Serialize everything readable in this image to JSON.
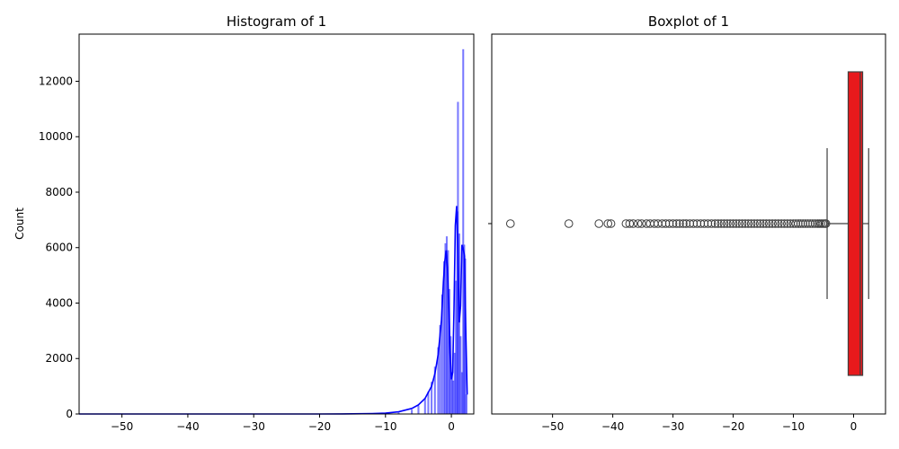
{
  "chart_data": [
    {
      "type": "histogram",
      "title": "Histogram of 1",
      "xlabel": "",
      "ylabel": "Count",
      "xlim": [
        -56.5,
        3.4
      ],
      "ylim": [
        0,
        13700
      ],
      "xticks": [
        -50,
        -40,
        -30,
        -20,
        -10,
        0
      ],
      "xtick_labels": [
        "−50",
        "−40",
        "−30",
        "−20",
        "−10",
        "0"
      ],
      "yticks": [
        0,
        2000,
        4000,
        6000,
        8000,
        10000,
        12000
      ],
      "ytick_labels": [
        "0",
        "2000",
        "4000",
        "6000",
        "8000",
        "10000",
        "12000"
      ],
      "bar_color": "#0000ff",
      "kde_color": "#0000ff",
      "bins": [
        {
          "x": -12,
          "count": 3
        },
        {
          "x": -10,
          "count": 10
        },
        {
          "x": -8,
          "count": 40
        },
        {
          "x": -6,
          "count": 150
        },
        {
          "x": -5,
          "count": 300
        },
        {
          "x": -4,
          "count": 550
        },
        {
          "x": -3.5,
          "count": 800
        },
        {
          "x": -3,
          "count": 1150
        },
        {
          "x": -2.5,
          "count": 1700
        },
        {
          "x": -2,
          "count": 2400
        },
        {
          "x": -1.7,
          "count": 3200
        },
        {
          "x": -1.4,
          "count": 4300
        },
        {
          "x": -1.1,
          "count": 5500
        },
        {
          "x": -0.9,
          "count": 6150
        },
        {
          "x": -0.7,
          "count": 6400
        },
        {
          "x": -0.5,
          "count": 5900
        },
        {
          "x": -0.3,
          "count": 4500
        },
        {
          "x": -0.1,
          "count": 2800
        },
        {
          "x": 0.1,
          "count": 1500
        },
        {
          "x": 0.3,
          "count": 1200
        },
        {
          "x": 0.5,
          "count": 2200
        },
        {
          "x": 0.7,
          "count": 4800
        },
        {
          "x": 0.9,
          "count": 7300
        },
        {
          "x": 1.0,
          "count": 11250
        },
        {
          "x": 1.2,
          "count": 6500
        },
        {
          "x": 1.4,
          "count": 2800
        },
        {
          "x": 1.6,
          "count": 1500
        },
        {
          "x": 1.8,
          "count": 13150
        },
        {
          "x": 1.95,
          "count": 6100
        },
        {
          "x": 2.1,
          "count": 5600
        },
        {
          "x": 2.3,
          "count": 700
        }
      ],
      "kde": {
        "x": [
          -56.5,
          -30,
          -20,
          -15,
          -12,
          -10,
          -8,
          -6,
          -5,
          -4,
          -3,
          -2.5,
          -2,
          -1.5,
          -1.2,
          -1.0,
          -0.8,
          -0.6,
          -0.4,
          -0.2,
          0.0,
          0.2,
          0.4,
          0.6,
          0.8,
          1.0,
          1.2,
          1.4,
          1.6,
          1.8,
          2.0,
          2.2,
          2.4
        ],
        "y": [
          0,
          0,
          0,
          5,
          15,
          30,
          80,
          200,
          330,
          560,
          1000,
          1450,
          2150,
          3400,
          4800,
          5500,
          5900,
          5300,
          3900,
          2200,
          1250,
          1500,
          3800,
          6800,
          7500,
          5800,
          3300,
          3900,
          6100,
          5950,
          5700,
          2900,
          700
        ]
      }
    },
    {
      "type": "boxplot",
      "title": "Boxplot of 1",
      "xlabel": "",
      "ylabel": "",
      "xlim": [
        -60.1,
        5.3
      ],
      "xticks": [
        -50,
        -40,
        -30,
        -20,
        -10,
        0
      ],
      "xtick_labels": [
        "−50",
        "−40",
        "−30",
        "−20",
        "−10",
        "0"
      ],
      "box_color": "#e8191c",
      "q1": -0.9,
      "median": 1.1,
      "q3": 1.5,
      "whisker_low": -4.4,
      "whisker_high": 2.5,
      "outliers": [
        -57,
        -47.3,
        -42.3,
        -40.8,
        -40.3,
        -37.8,
        -37.2,
        -36.6,
        -35.8,
        -35.2,
        -34.4,
        -33.8,
        -33.1,
        -32.5,
        -31.8,
        -31.2,
        -30.6,
        -30,
        -29.4,
        -28.9,
        -28.3,
        -27.8,
        -27.2,
        -26.6,
        -26,
        -25.4,
        -24.8,
        -24.2,
        -23.6,
        -23,
        -22.5,
        -22,
        -21.5,
        -21,
        -20.5,
        -20,
        -19.5,
        -19,
        -18.5,
        -18,
        -17.5,
        -17,
        -16.5,
        -16,
        -15.5,
        -15,
        -14.5,
        -14,
        -13.5,
        -13,
        -12.5,
        -12,
        -11.5,
        -11,
        -10.5,
        -10,
        -9.6,
        -9.2,
        -8.8,
        -8.4,
        -8,
        -7.6,
        -7.2,
        -6.8,
        -6.4,
        -6,
        -5.7,
        -5.4,
        -5.1,
        -4.8,
        -4.6
      ]
    }
  ]
}
